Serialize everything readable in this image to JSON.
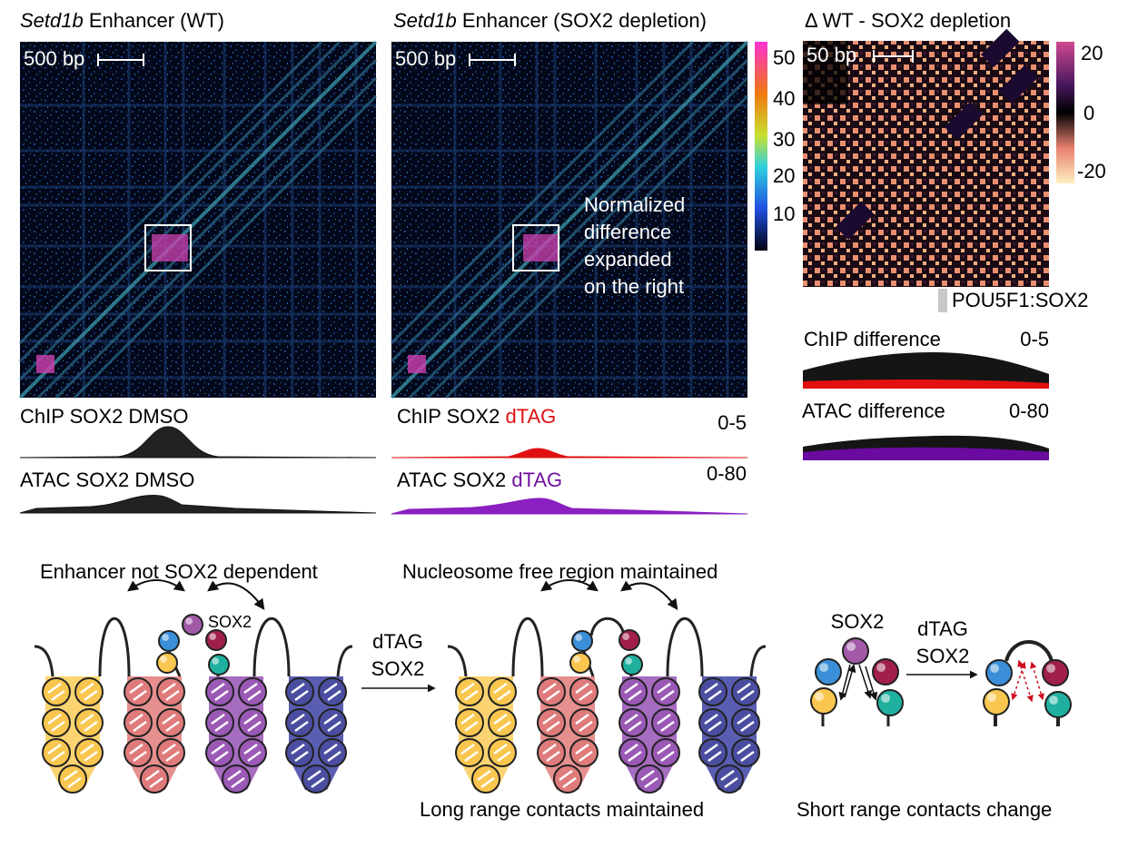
{
  "wt": {
    "title_italic": "Setd1b",
    "title_rest": " Enhancer (WT)",
    "scale": "500 bp",
    "chip": "ChIP SOX2 DMSO",
    "atac": "ATAC SOX2 DMSO"
  },
  "sox2": {
    "title_italic": "Setd1b",
    "title_rest": " Enhancer (SOX2 depletion)",
    "scale": "500 bp",
    "chip_pre": "ChIP SOX2 ",
    "chip_tag": "dTAG",
    "chip_range": "0-5",
    "atac_pre": "ATAC SOX2 ",
    "atac_tag": "dTAG",
    "atac_range": "0-80",
    "note": [
      "Normalized",
      "difference",
      "expanded",
      "on the right"
    ]
  },
  "colorbar": [
    "50",
    "40",
    "30",
    "20",
    "10"
  ],
  "delta": {
    "title": "Δ WT - SOX2 depletion",
    "scale": "50 bp",
    "colorbar": [
      "20",
      "0",
      "-20"
    ],
    "motif": "POU5F1:SOX2",
    "chip": "ChIP difference",
    "chip_range": "0-5",
    "atac": "ATAC difference",
    "atac_range": "0-80"
  },
  "schematic": {
    "left_caption": "Enhancer not SOX2 dependent",
    "sox2": "SOX2",
    "arrow": [
      "dTAG",
      "SOX2"
    ],
    "mid_caption": "Nucleosome free region maintained",
    "mid_bottom": "Long range contacts maintained",
    "right_sox2": "SOX2",
    "right_arrow": [
      "dTAG",
      "SOX2"
    ],
    "right_bottom": "Short range contacts change"
  }
}
